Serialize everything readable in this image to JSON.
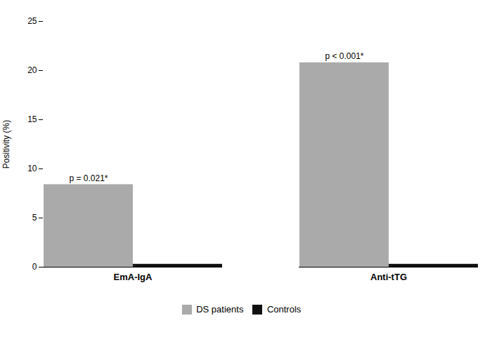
{
  "chart_data": {
    "type": "bar",
    "categories": [
      "EmA-IgA",
      "Anti-tTG"
    ],
    "series": [
      {
        "name": "DS patients",
        "color": "#AAAAAA",
        "values": [
          8.4,
          20.8
        ]
      },
      {
        "name": "Controls",
        "color": "#111111",
        "values": [
          0.3,
          0.3
        ]
      }
    ],
    "ylabel": "Positivity (%)",
    "ylim": [
      0,
      25
    ],
    "yticks": [
      0,
      5,
      10,
      15,
      20,
      25
    ],
    "annotations": [
      "p = 0.021*",
      "p < 0.001*"
    ],
    "grid": false,
    "legend": "bottom"
  }
}
